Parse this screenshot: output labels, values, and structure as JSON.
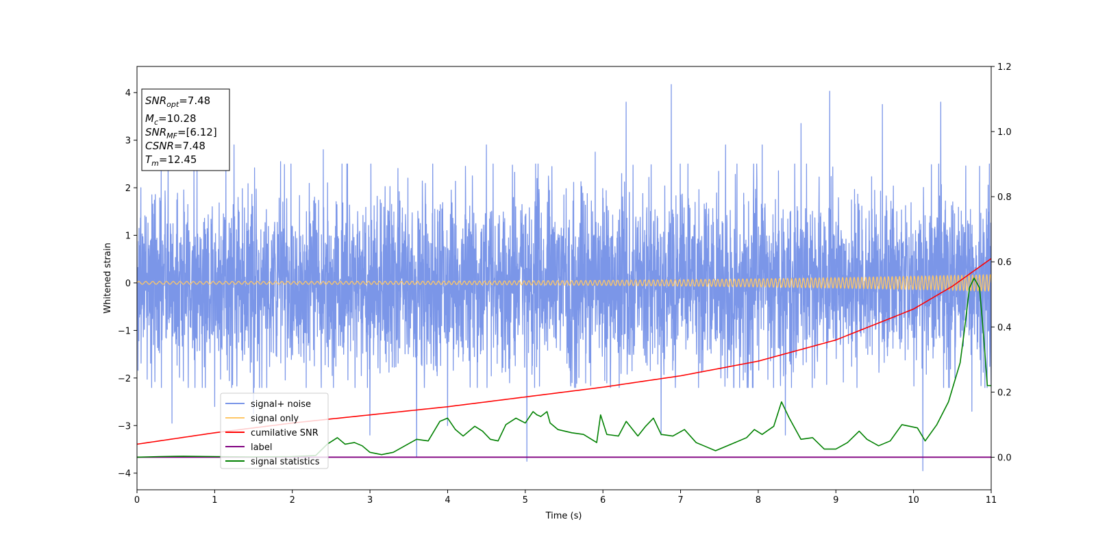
{
  "chart_data": {
    "type": "line",
    "xlabel": "Time (s)",
    "ylabel": "Whitened strain",
    "xlim": [
      0,
      11
    ],
    "ylim_left": [
      -4.35,
      4.55
    ],
    "ylim_right": [
      -0.1,
      1.2
    ],
    "x_ticks": [
      "0",
      "1",
      "2",
      "3",
      "4",
      "5",
      "6",
      "7",
      "8",
      "9",
      "10",
      "11"
    ],
    "y_ticks_left": [
      "−4",
      "−3",
      "−2",
      "−1",
      "0",
      "1",
      "2",
      "3",
      "4"
    ],
    "y_ticks_right": [
      "0.0",
      "0.2",
      "0.4",
      "0.6",
      "0.8",
      "1.0",
      "1.2"
    ],
    "grid": false,
    "legend_placement": "lower-left",
    "legend": [
      {
        "label": "signal+ noise",
        "color": "#7b96e8"
      },
      {
        "label": "signal only",
        "color": "#ffc766"
      },
      {
        "label": "cumilative SNR",
        "color": "#ff0000"
      },
      {
        "label": "label",
        "color": "#800080"
      },
      {
        "label": "signal statistics",
        "color": "#008000"
      }
    ],
    "annotation": {
      "lines": [
        {
          "main": "SNR",
          "sub": "opt",
          "rest": "=7.48"
        },
        {
          "main": "M",
          "sub": "c",
          "rest": "=10.28"
        },
        {
          "main": "SNR",
          "sub": "MF",
          "rest": "=[6.12]"
        },
        {
          "main": "CSNR",
          "sub": "",
          "rest": "=7.48"
        },
        {
          "main": "T",
          "sub": "m",
          "rest": "=12.45"
        }
      ]
    },
    "series": [
      {
        "name": "signal+ noise",
        "axis": "left",
        "color": "#7b96e8",
        "noise_envelope": {
          "x": [
            0,
            11
          ],
          "typical_range": [
            -2.0,
            2.5
          ],
          "max_peak": 4.17,
          "min_peak": -3.95
        },
        "peaks": [
          {
            "x": 0.05,
            "y": 2.0
          },
          {
            "x": 0.4,
            "y": 2.45
          },
          {
            "x": 1.25,
            "y": 2.9
          },
          {
            "x": 1.85,
            "y": 2.55
          },
          {
            "x": 2.4,
            "y": 2.8
          },
          {
            "x": 3.0,
            "y": 2.7
          },
          {
            "x": 4.0,
            "y": 3.2
          },
          {
            "x": 4.5,
            "y": 2.9
          },
          {
            "x": 5.9,
            "y": 2.75
          },
          {
            "x": 6.3,
            "y": 3.8
          },
          {
            "x": 6.88,
            "y": 4.17
          },
          {
            "x": 7.58,
            "y": 2.9
          },
          {
            "x": 8.05,
            "y": 2.9
          },
          {
            "x": 8.55,
            "y": 3.35
          },
          {
            "x": 8.92,
            "y": 4.03
          },
          {
            "x": 9.6,
            "y": 3.75
          },
          {
            "x": 10.35,
            "y": 3.8
          },
          {
            "x": 10.85,
            "y": 2.45
          }
        ],
        "troughs": [
          {
            "x": 0.45,
            "y": -2.95
          },
          {
            "x": 1.0,
            "y": -2.6
          },
          {
            "x": 1.5,
            "y": -2.75
          },
          {
            "x": 3.0,
            "y": -3.2
          },
          {
            "x": 3.6,
            "y": -3.65
          },
          {
            "x": 4.0,
            "y": -3.0
          },
          {
            "x": 5.02,
            "y": -3.75
          },
          {
            "x": 6.75,
            "y": -3.2
          },
          {
            "x": 8.35,
            "y": -3.2
          },
          {
            "x": 10.12,
            "y": -3.95
          },
          {
            "x": 10.75,
            "y": -2.7
          }
        ]
      },
      {
        "name": "signal only",
        "axis": "left",
        "color": "#ffc766",
        "chirp": {
          "t_start": 0,
          "t_end": 11,
          "f_start": 11,
          "f_end": 22,
          "amp_start": 0.03,
          "amp_end": 0.18
        }
      },
      {
        "name": "cumilative SNR",
        "axis": "right",
        "color": "#ff0000",
        "x": [
          0,
          1,
          2,
          3,
          4,
          5,
          6,
          7,
          8,
          9,
          10,
          10.5,
          11
        ],
        "y": [
          0.04,
          0.075,
          0.105,
          0.13,
          0.155,
          0.185,
          0.215,
          0.25,
          0.295,
          0.36,
          0.455,
          0.525,
          0.61
        ]
      },
      {
        "name": "label",
        "axis": "right",
        "color": "#800080",
        "x": [
          0,
          11
        ],
        "y": [
          0,
          0
        ]
      },
      {
        "name": "signal statistics",
        "axis": "right",
        "color": "#008000",
        "x": [
          0,
          0.3,
          0.6,
          1.0,
          1.5,
          2.0,
          2.3,
          2.45,
          2.58,
          2.68,
          2.8,
          2.9,
          3.0,
          3.15,
          3.3,
          3.45,
          3.6,
          3.75,
          3.9,
          4.0,
          4.1,
          4.2,
          4.35,
          4.45,
          4.55,
          4.65,
          4.75,
          4.88,
          5.0,
          5.1,
          5.15,
          5.2,
          5.28,
          5.32,
          5.42,
          5.6,
          5.75,
          5.92,
          5.97,
          6.05,
          6.2,
          6.3,
          6.45,
          6.55,
          6.65,
          6.75,
          6.9,
          7.05,
          7.2,
          7.3,
          7.45,
          7.65,
          7.85,
          7.95,
          8.05,
          8.2,
          8.3,
          8.4,
          8.55,
          8.7,
          8.85,
          9.0,
          9.15,
          9.3,
          9.4,
          9.55,
          9.7,
          9.85,
          9.95,
          10.05,
          10.15,
          10.3,
          10.45,
          10.6,
          10.65,
          10.72,
          10.78,
          10.85,
          10.9,
          10.95,
          11.0
        ],
        "y": [
          0.0,
          0.002,
          0.003,
          0.002,
          0.001,
          0.002,
          0.005,
          0.04,
          0.06,
          0.04,
          0.045,
          0.035,
          0.015,
          0.008,
          0.015,
          0.035,
          0.055,
          0.05,
          0.11,
          0.12,
          0.085,
          0.065,
          0.095,
          0.08,
          0.055,
          0.05,
          0.1,
          0.12,
          0.105,
          0.14,
          0.13,
          0.125,
          0.14,
          0.105,
          0.085,
          0.075,
          0.07,
          0.045,
          0.13,
          0.07,
          0.065,
          0.11,
          0.065,
          0.095,
          0.12,
          0.07,
          0.065,
          0.085,
          0.045,
          0.035,
          0.02,
          0.04,
          0.06,
          0.085,
          0.07,
          0.095,
          0.17,
          0.12,
          0.055,
          0.06,
          0.025,
          0.025,
          0.045,
          0.08,
          0.055,
          0.035,
          0.05,
          0.1,
          0.095,
          0.09,
          0.05,
          0.1,
          0.17,
          0.29,
          0.38,
          0.52,
          0.55,
          0.52,
          0.38,
          0.22,
          0.22
        ]
      }
    ]
  }
}
